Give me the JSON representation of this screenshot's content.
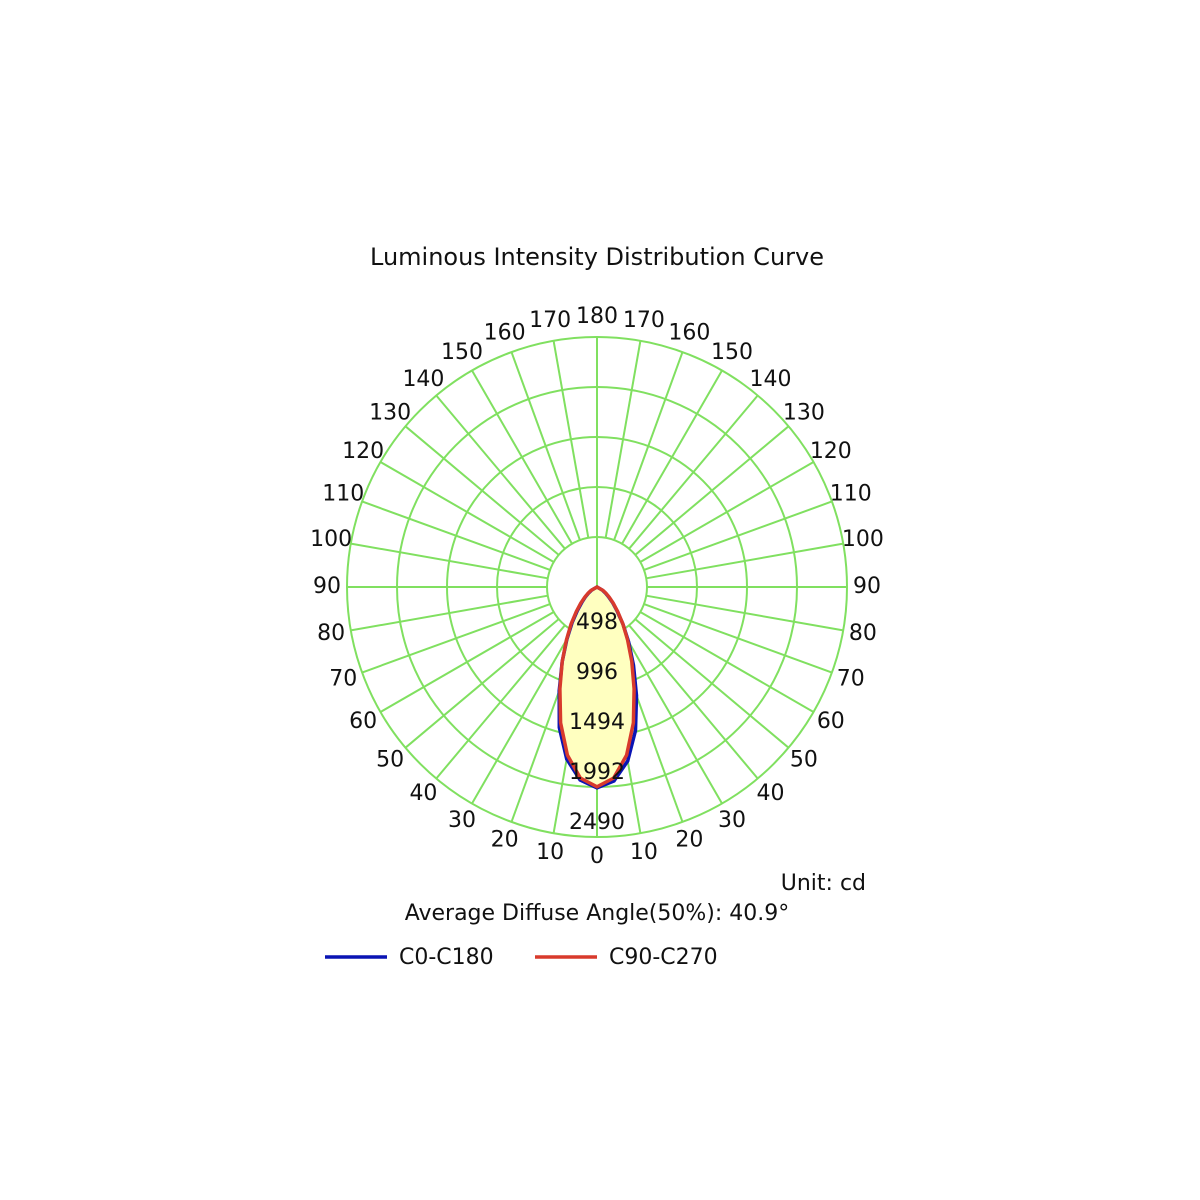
{
  "chart_data": {
    "type": "polar",
    "title": "Luminous Intensity Distribution Curve",
    "unit_label": "Unit: cd",
    "annotation": "Average Diffuse Angle(50%): 40.9°",
    "theta": [
      -60,
      -55,
      -50,
      -45,
      -40,
      -35,
      -30,
      -25,
      -20,
      -15,
      -10,
      -5,
      0,
      5,
      10,
      15,
      20,
      25,
      30,
      35,
      40,
      45,
      50,
      55,
      60
    ],
    "series": [
      {
        "name": "C0-C180",
        "color": "#0a14b4",
        "values": [
          60,
          100,
          150,
          210,
          300,
          430,
          600,
          820,
          1100,
          1450,
          1740,
          1930,
          2000,
          1940,
          1760,
          1480,
          1150,
          860,
          630,
          450,
          310,
          220,
          150,
          100,
          60
        ]
      },
      {
        "name": "C90-C270",
        "color": "#d83a2c",
        "values": [
          70,
          110,
          160,
          230,
          320,
          450,
          610,
          820,
          1080,
          1400,
          1700,
          1910,
          1990,
          1910,
          1700,
          1400,
          1080,
          820,
          610,
          450,
          320,
          230,
          160,
          110,
          70
        ]
      }
    ],
    "rlim": [
      0,
      2490
    ],
    "rticks": [
      498,
      996,
      1494,
      1992,
      2490
    ],
    "theta_ticks": [
      0,
      10,
      20,
      30,
      40,
      50,
      60,
      70,
      80,
      90,
      100,
      110,
      120,
      130,
      140,
      150,
      160,
      170,
      180
    ],
    "grid": true,
    "grid_color": "#80e060",
    "fill_color": "#ffffc0"
  }
}
